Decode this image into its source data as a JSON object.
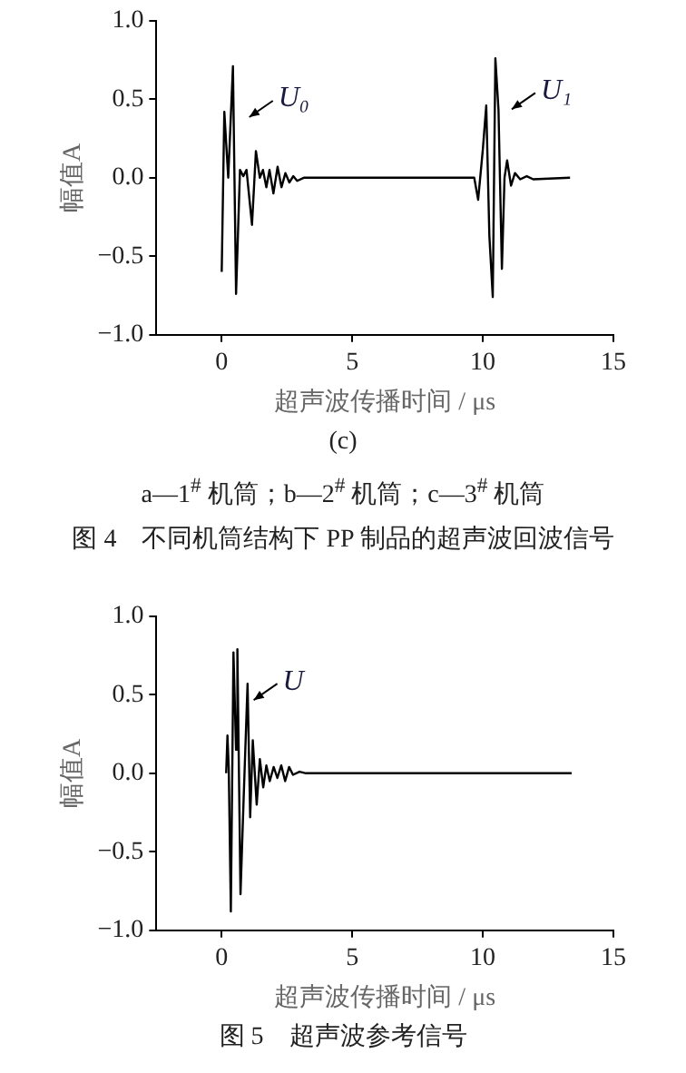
{
  "chart_data": [
    {
      "type": "line",
      "xlabel": "超声波传播时间 / μs",
      "ylabel": "幅值A",
      "marker": "none",
      "grid": false,
      "x": [
        0,
        0.1,
        0.25,
        0.43,
        0.55,
        0.7,
        0.83,
        0.95,
        1.16,
        1.31,
        1.46,
        1.58,
        1.71,
        1.83,
        1.98,
        2.14,
        2.29,
        2.44,
        2.59,
        2.74,
        2.89,
        3.14,
        5,
        8,
        9.67,
        9.82,
        10.0,
        10.13,
        10.25,
        10.38,
        10.48,
        10.6,
        10.73,
        10.83,
        10.93,
        11.08,
        11.23,
        11.43,
        11.68,
        11.93,
        13.34
      ],
      "series": [
        {
          "color": "#000000",
          "values": [
            -0.6,
            0.42,
            0.0,
            0.71,
            -0.74,
            0.05,
            0.01,
            0.05,
            -0.3,
            0.17,
            0.0,
            0.05,
            -0.06,
            0.05,
            -0.1,
            0.07,
            -0.06,
            0.03,
            -0.03,
            0.01,
            -0.02,
            0,
            0,
            0,
            0,
            -0.14,
            0.18,
            0.46,
            -0.37,
            -0.76,
            0.76,
            0.43,
            -0.58,
            0,
            0.11,
            -0.05,
            0.03,
            -0.01,
            0.01,
            -0.01,
            0
          ]
        }
      ],
      "xlim": [
        -2.5,
        15
      ],
      "xticks": [
        0,
        5,
        10,
        15
      ],
      "ylim": [
        -1,
        1
      ],
      "yticks": [
        {
          "value": -1,
          "label": "−1.0"
        },
        {
          "value": -0.5,
          "label": "−0.5"
        },
        {
          "value": 0,
          "label": "0.0"
        },
        {
          "value": 0.5,
          "label": "0.5"
        },
        {
          "value": 1,
          "label": "1.0"
        }
      ],
      "annotations": [
        {
          "text": "U₀",
          "x": 0.43,
          "y": 0.71
        },
        {
          "text": "U₁",
          "x": 10.48,
          "y": 0.76
        },
        "(c)",
        "a—1$^{#}$ 机筒；b—2$^{#}$ 机筒；c—3$^{#}$ 机筒",
        "图 4　不同机筒结构下 PP 制品的超声波回波信号"
      ]
    },
    {
      "type": "line",
      "xlabel": "超声波传播时间 / μs",
      "ylabel": "幅值A",
      "marker": "none",
      "grid": false,
      "x": [
        0.17,
        0.22,
        0.27,
        0.35,
        0.45,
        0.55,
        0.6,
        0.72,
        0.84,
        0.99,
        1.09,
        1.19,
        1.34,
        1.46,
        1.59,
        1.71,
        1.84,
        1.99,
        2.13,
        2.28,
        2.43,
        2.58,
        2.73,
        2.98,
        3.23,
        13.4
      ],
      "series": [
        {
          "color": "#000000",
          "values": [
            0,
            0.24,
            0.03,
            -0.88,
            0.77,
            0.15,
            0.79,
            -0.77,
            -0.16,
            0.57,
            -0.28,
            0.21,
            -0.2,
            0.09,
            -0.09,
            0.05,
            -0.05,
            0.04,
            -0.03,
            0.05,
            -0.05,
            0.04,
            -0.01,
            0.01,
            0,
            0
          ]
        }
      ],
      "xlim": [
        -2.5,
        15
      ],
      "xticks": [
        0,
        5,
        10,
        15
      ],
      "ylim": [
        -1,
        1
      ],
      "yticks": [
        {
          "value": -1,
          "label": "−1.0"
        },
        {
          "value": -0.5,
          "label": "−0.5"
        },
        {
          "value": 0,
          "label": "0.0"
        },
        {
          "value": 0.5,
          "label": "0.5"
        },
        {
          "value": 1,
          "label": "1.0"
        }
      ],
      "annotations": [
        {
          "text": "U",
          "x": 0.6,
          "y": 0.79
        },
        "图 5　超声波参考信号"
      ]
    }
  ]
}
